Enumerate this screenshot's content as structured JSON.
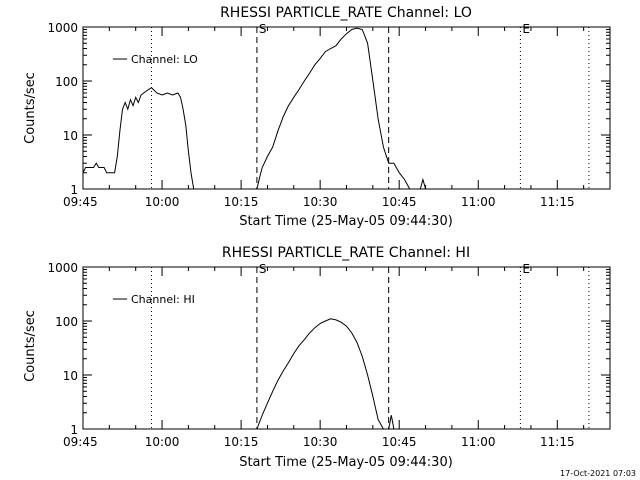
{
  "footer": {
    "timestamp": "17-Oct-2021 07:03"
  },
  "chart_data": [
    {
      "type": "line",
      "title": "RHESSI PARTICLE_RATE Channel: LO",
      "xlabel": "Start Time (25-May-05 09:44:30)",
      "ylabel": "Counts/sec",
      "yscale": "log",
      "ylim": [
        1,
        1000
      ],
      "xlim": [
        "09:45",
        "11:25"
      ],
      "xticks": [
        "09:45",
        "10:00",
        "10:15",
        "10:30",
        "10:45",
        "11:00",
        "11:15"
      ],
      "yticks": [
        "1",
        "10",
        "100",
        "1000"
      ],
      "legend": {
        "label": "Channel: LO",
        "position": "top-left"
      },
      "markers": [
        {
          "time": "09:58",
          "style": "dotted",
          "label": ""
        },
        {
          "time": "10:18",
          "style": "dashed",
          "label": "S"
        },
        {
          "time": "10:43",
          "style": "dashed",
          "label": ""
        },
        {
          "time": "11:08",
          "style": "dotted",
          "label": "E"
        },
        {
          "time": "11:21",
          "style": "dotted",
          "label": ""
        }
      ],
      "series": [
        {
          "name": "Channel: LO",
          "segments": [
            [
              [
                "09:45",
                2
              ],
              [
                "09:45.5",
                2.5
              ],
              [
                "09:47",
                2.5
              ],
              [
                "09:47.5",
                3
              ],
              [
                "09:48",
                2.5
              ],
              [
                "09:49",
                2.5
              ],
              [
                "09:49.5",
                2
              ],
              [
                "09:50.5",
                2
              ],
              [
                "09:51",
                2
              ],
              [
                "09:51.5",
                4
              ],
              [
                "09:52",
                12
              ],
              [
                "09:52.5",
                30
              ],
              [
                "09:53",
                40
              ],
              [
                "09:53.5",
                30
              ],
              [
                "09:54",
                45
              ],
              [
                "09:54.5",
                35
              ],
              [
                "09:55",
                50
              ],
              [
                "09:55.5",
                40
              ],
              [
                "09:56",
                55
              ],
              [
                "09:57",
                65
              ],
              [
                "09:58",
                75
              ],
              [
                "09:59",
                60
              ],
              [
                "10:00",
                55
              ],
              [
                "10:01",
                60
              ],
              [
                "10:02",
                55
              ],
              [
                "10:03",
                60
              ],
              [
                "10:03.5",
                50
              ],
              [
                "10:04",
                30
              ],
              [
                "10:04.5",
                15
              ],
              [
                "10:05",
                5
              ],
              [
                "10:05.5",
                2
              ],
              [
                "10:06",
                1
              ]
            ],
            [
              [
                "10:18",
                1
              ],
              [
                "10:18.5",
                1.6
              ],
              [
                "10:19",
                2.5
              ],
              [
                "10:20",
                4
              ],
              [
                "10:21",
                6
              ],
              [
                "10:22",
                12
              ],
              [
                "10:23",
                22
              ],
              [
                "10:24",
                35
              ],
              [
                "10:25",
                50
              ],
              [
                "10:26",
                70
              ],
              [
                "10:27",
                100
              ],
              [
                "10:28",
                140
              ],
              [
                "10:29",
                200
              ],
              [
                "10:30",
                260
              ],
              [
                "10:31",
                350
              ],
              [
                "10:32",
                400
              ],
              [
                "10:33",
                450
              ],
              [
                "10:34",
                600
              ],
              [
                "10:35",
                750
              ],
              [
                "10:36",
                900
              ],
              [
                "10:37",
                950
              ],
              [
                "10:38",
                900
              ],
              [
                "10:39",
                500
              ],
              [
                "10:40",
                100
              ],
              [
                "10:41",
                20
              ],
              [
                "10:42",
                6
              ],
              [
                "10:43",
                3
              ],
              [
                "10:44",
                3
              ],
              [
                "10:45",
                2
              ],
              [
                "10:46",
                1.5
              ],
              [
                "10:47",
                1
              ]
            ],
            [
              [
                "10:49",
                1
              ],
              [
                "10:49.5",
                1.5
              ],
              [
                "10:50",
                1
              ]
            ]
          ]
        }
      ]
    },
    {
      "type": "line",
      "title": "RHESSI PARTICLE_RATE Channel: HI",
      "xlabel": "Start Time (25-May-05 09:44:30)",
      "ylabel": "Counts/sec",
      "yscale": "log",
      "ylim": [
        1,
        1000
      ],
      "xlim": [
        "09:45",
        "11:25"
      ],
      "xticks": [
        "09:45",
        "10:00",
        "10:15",
        "10:30",
        "10:45",
        "11:00",
        "11:15"
      ],
      "yticks": [
        "1",
        "10",
        "100",
        "1000"
      ],
      "legend": {
        "label": "Channel: HI",
        "position": "top-left"
      },
      "markers": [
        {
          "time": "09:58",
          "style": "dotted",
          "label": ""
        },
        {
          "time": "10:18",
          "style": "dashed",
          "label": "S"
        },
        {
          "time": "10:43",
          "style": "dashed",
          "label": ""
        },
        {
          "time": "11:08",
          "style": "dotted",
          "label": "E"
        },
        {
          "time": "11:21",
          "style": "dotted",
          "label": ""
        }
      ],
      "series": [
        {
          "name": "Channel: HI",
          "segments": [
            [
              [
                "10:18",
                1
              ],
              [
                "10:19",
                1.8
              ],
              [
                "10:20",
                3
              ],
              [
                "10:21",
                5
              ],
              [
                "10:22",
                8
              ],
              [
                "10:23",
                12
              ],
              [
                "10:24",
                17
              ],
              [
                "10:25",
                25
              ],
              [
                "10:26",
                35
              ],
              [
                "10:27",
                45
              ],
              [
                "10:28",
                60
              ],
              [
                "10:29",
                75
              ],
              [
                "10:30",
                90
              ],
              [
                "10:31",
                100
              ],
              [
                "10:32",
                110
              ],
              [
                "10:33",
                105
              ],
              [
                "10:34",
                95
              ],
              [
                "10:35",
                80
              ],
              [
                "10:36",
                60
              ],
              [
                "10:37",
                40
              ],
              [
                "10:38",
                22
              ],
              [
                "10:39",
                10
              ],
              [
                "10:40",
                4
              ],
              [
                "10:41",
                1.5
              ],
              [
                "10:42",
                1
              ]
            ],
            [
              [
                "10:43",
                1
              ],
              [
                "10:43.5",
                1.8
              ],
              [
                "10:44",
                1
              ]
            ]
          ]
        }
      ]
    }
  ]
}
